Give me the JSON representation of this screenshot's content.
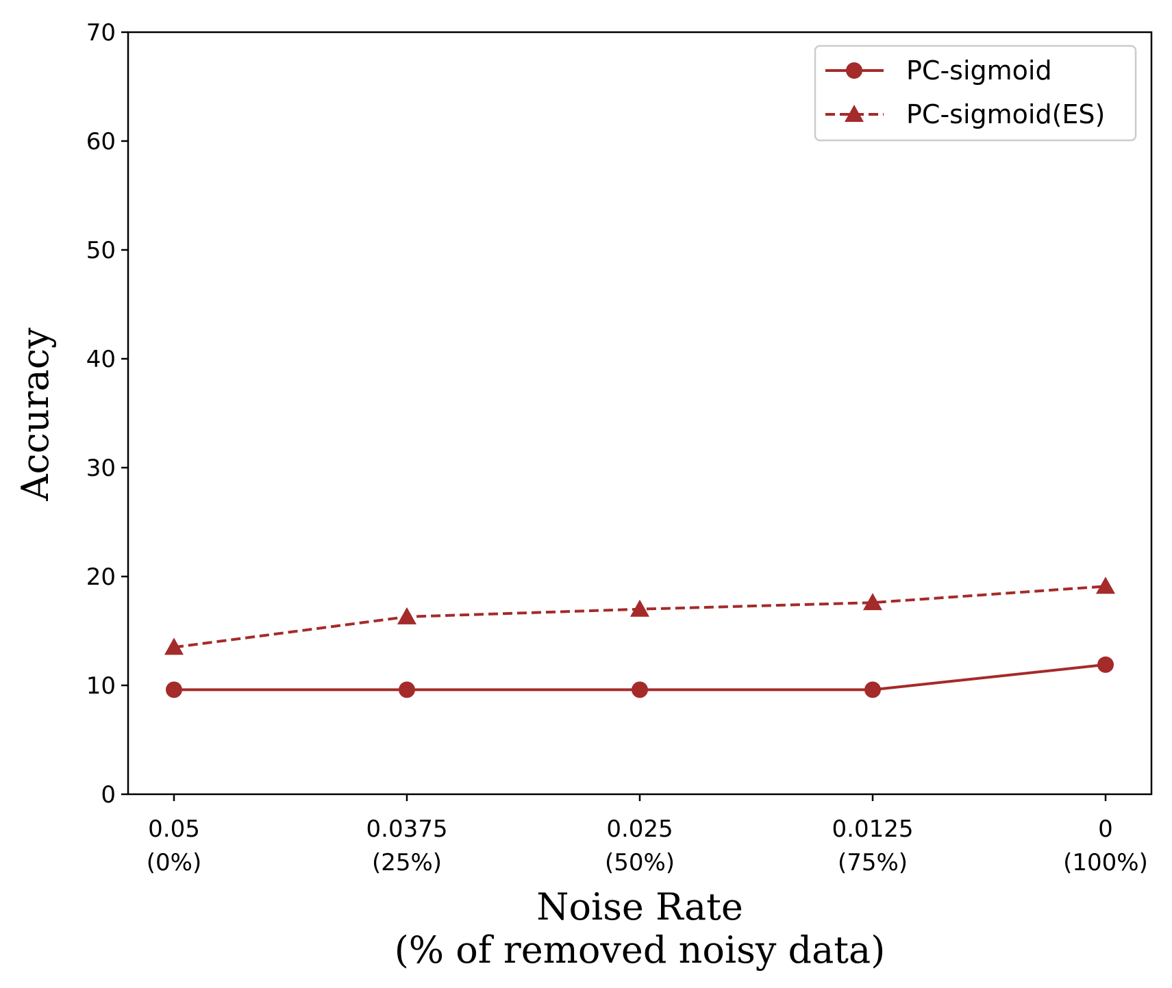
{
  "chart_data": {
    "type": "line",
    "title": "",
    "xlabel": [
      "Noise Rate",
      "(% of removed noisy data)"
    ],
    "ylabel": "Accuracy",
    "categories": [
      [
        "0.05",
        "(0%)"
      ],
      [
        "0.0375",
        "(25%)"
      ],
      [
        "0.025",
        "(50%)"
      ],
      [
        "0.0125",
        "(75%)"
      ],
      [
        "0",
        "(100%)"
      ]
    ],
    "ylim": [
      0,
      70
    ],
    "yticks": [
      0,
      10,
      20,
      30,
      40,
      50,
      60,
      70
    ],
    "grid": false,
    "legend_position": "top-right",
    "series": [
      {
        "name": "PC-sigmoid",
        "values": [
          9.6,
          9.6,
          9.6,
          9.6,
          11.9
        ],
        "color": "#a52a2a",
        "marker": "circle",
        "linestyle": "solid"
      },
      {
        "name": "PC-sigmoid(ES)",
        "values": [
          13.5,
          16.3,
          17.0,
          17.6,
          19.1
        ],
        "color": "#a52a2a",
        "marker": "triangle",
        "linestyle": "dashed"
      }
    ]
  }
}
